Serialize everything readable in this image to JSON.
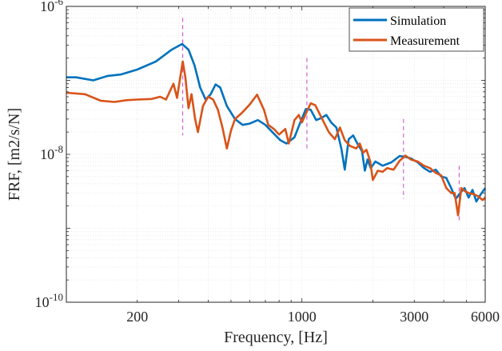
{
  "chart_data": {
    "type": "line",
    "title": "",
    "xlabel": "Frequency, [Hz]",
    "ylabel": "FRF, [m2/s/N]",
    "x_scale": "log",
    "y_scale": "log",
    "xlim": [
      100,
      6000
    ],
    "ylim": [
      1e-10,
      1e-06
    ],
    "grid": true,
    "legend_position": "top-right",
    "x_ticks": [
      {
        "value": 200,
        "label": "200"
      },
      {
        "value": 1000,
        "label": "1000"
      },
      {
        "value": 3000,
        "label": "3000"
      },
      {
        "value": 6000,
        "label": "6000"
      }
    ],
    "y_ticks": [
      {
        "value": 1e-10,
        "base": "10",
        "exp": "-10"
      },
      {
        "value": 1e-08,
        "base": "10",
        "exp": "-8"
      },
      {
        "value": 1e-06,
        "base": "10",
        "exp": "-6"
      }
    ],
    "series": [
      {
        "name": "Simulation",
        "color": "#0072BD",
        "points": [
          [
            100,
            1.1e-07
          ],
          [
            110,
            1.1e-07
          ],
          [
            130,
            1e-07
          ],
          [
            150,
            1.15e-07
          ],
          [
            170,
            1.2e-07
          ],
          [
            200,
            1.4e-07
          ],
          [
            240,
            1.8e-07
          ],
          [
            280,
            2.6e-07
          ],
          [
            310,
            3.1e-07
          ],
          [
            330,
            2.6e-07
          ],
          [
            350,
            1.6e-07
          ],
          [
            370,
            8e-08
          ],
          [
            390,
            5.5e-08
          ],
          [
            410,
            6.5e-08
          ],
          [
            430,
            8.8e-08
          ],
          [
            450,
            8e-08
          ],
          [
            480,
            4.5e-08
          ],
          [
            520,
            3e-08
          ],
          [
            560,
            2.5e-08
          ],
          [
            600,
            2.6e-08
          ],
          [
            650,
            2.9e-08
          ],
          [
            700,
            2.5e-08
          ],
          [
            760,
            1.9e-08
          ],
          [
            810,
            1.55e-08
          ],
          [
            860,
            1.4e-08
          ],
          [
            930,
            1.7e-08
          ],
          [
            980,
            2.6e-08
          ],
          [
            1040,
            4.1e-08
          ],
          [
            1090,
            4e-08
          ],
          [
            1150,
            2.9e-08
          ],
          [
            1210,
            3.1e-08
          ],
          [
            1270,
            3.4e-08
          ],
          [
            1330,
            2.7e-08
          ],
          [
            1400,
            2.3e-08
          ],
          [
            1470,
            1.2e-08
          ],
          [
            1520,
            6.2e-09
          ],
          [
            1580,
            1.6e-08
          ],
          [
            1650,
            1.8e-08
          ],
          [
            1720,
            1.4e-08
          ],
          [
            1800,
            1.1e-08
          ],
          [
            1850,
            6e-09
          ],
          [
            1900,
            8.5e-09
          ],
          [
            1960,
            6.5e-09
          ],
          [
            2050,
            8e-09
          ],
          [
            2200,
            7e-09
          ],
          [
            2400,
            7.8e-09
          ],
          [
            2600,
            9.5e-09
          ],
          [
            2750,
            9.2e-09
          ],
          [
            2900,
            8.8e-09
          ],
          [
            3100,
            7.8e-09
          ],
          [
            3300,
            6.5e-09
          ],
          [
            3500,
            5.8e-09
          ],
          [
            3700,
            6.2e-09
          ],
          [
            3900,
            5e-09
          ],
          [
            4100,
            4.8e-09
          ],
          [
            4300,
            3.5e-09
          ],
          [
            4500,
            2.5e-09
          ],
          [
            4700,
            3e-09
          ],
          [
            4900,
            3.5e-09
          ],
          [
            5100,
            2.6e-09
          ],
          [
            5300,
            3.3e-09
          ],
          [
            5500,
            2.3e-09
          ],
          [
            5750,
            2.9e-09
          ],
          [
            6000,
            3.5e-09
          ]
        ]
      },
      {
        "name": "Measurement",
        "color": "#D95319",
        "points": [
          [
            100,
            6.8e-08
          ],
          [
            120,
            6.5e-08
          ],
          [
            140,
            5.3e-08
          ],
          [
            160,
            5.1e-08
          ],
          [
            180,
            5.4e-08
          ],
          [
            200,
            5.5e-08
          ],
          [
            230,
            5.6e-08
          ],
          [
            250,
            6e-08
          ],
          [
            265,
            5.5e-08
          ],
          [
            285,
            9e-08
          ],
          [
            295,
            5.8e-08
          ],
          [
            303,
            1e-07
          ],
          [
            312,
            1.8e-07
          ],
          [
            320,
            1.1e-07
          ],
          [
            330,
            4.2e-08
          ],
          [
            340,
            6.5e-08
          ],
          [
            352,
            3e-08
          ],
          [
            362,
            2e-08
          ],
          [
            380,
            4.5e-08
          ],
          [
            400,
            6e-08
          ],
          [
            420,
            5.5e-08
          ],
          [
            440,
            4e-08
          ],
          [
            460,
            2.3e-08
          ],
          [
            480,
            1.2e-08
          ],
          [
            500,
            2.1e-08
          ],
          [
            520,
            3e-08
          ],
          [
            555,
            3.6e-08
          ],
          [
            600,
            4.7e-08
          ],
          [
            645,
            6.4e-08
          ],
          [
            690,
            4e-08
          ],
          [
            720,
            2.5e-08
          ],
          [
            760,
            2.2e-08
          ],
          [
            800,
            1.85e-08
          ],
          [
            850,
            2.2e-08
          ],
          [
            880,
            1.4e-08
          ],
          [
            930,
            2.9e-08
          ],
          [
            970,
            3.4e-08
          ],
          [
            1000,
            2.7e-08
          ],
          [
            1050,
            3.8e-08
          ],
          [
            1090,
            4.9e-08
          ],
          [
            1140,
            4.6e-08
          ],
          [
            1220,
            3e-08
          ],
          [
            1300,
            2e-08
          ],
          [
            1380,
            1.6e-08
          ],
          [
            1450,
            2.3e-08
          ],
          [
            1520,
            1.55e-08
          ],
          [
            1600,
            1.3e-08
          ],
          [
            1700,
            1.2e-08
          ],
          [
            1760,
            1.4e-08
          ],
          [
            1820,
            1.05e-08
          ],
          [
            1880,
            1.15e-08
          ],
          [
            1950,
            8e-09
          ],
          [
            2000,
            4.5e-09
          ],
          [
            2100,
            6e-09
          ],
          [
            2200,
            5.8e-09
          ],
          [
            2300,
            6.5e-09
          ],
          [
            2450,
            6.2e-09
          ],
          [
            2600,
            8.2e-09
          ],
          [
            2750,
            9.6e-09
          ],
          [
            2900,
            8.5e-09
          ],
          [
            3100,
            8e-09
          ],
          [
            3300,
            7e-09
          ],
          [
            3500,
            6.5e-09
          ],
          [
            3700,
            5.6e-09
          ],
          [
            3900,
            5.2e-09
          ],
          [
            4100,
            3.5e-09
          ],
          [
            4300,
            3e-09
          ],
          [
            4450,
            3e-09
          ],
          [
            4600,
            1.5e-09
          ],
          [
            4750,
            3.5e-09
          ],
          [
            4900,
            3.2e-09
          ],
          [
            5100,
            3e-09
          ],
          [
            5350,
            2.9e-09
          ],
          [
            5600,
            2.7e-09
          ],
          [
            5850,
            2.4e-09
          ],
          [
            6000,
            2.6e-09
          ]
        ]
      }
    ],
    "markers": [
      {
        "x": 312,
        "y_low": 1.8e-08,
        "y_high": 7e-07
      },
      {
        "x": 1050,
        "y_low": 1.1e-08,
        "y_high": 2e-07
      },
      {
        "x": 2700,
        "y_low": 2.5e-09,
        "y_high": 3e-08
      },
      {
        "x": 4650,
        "y_low": 1.2e-09,
        "y_high": 7e-09
      }
    ],
    "marker_color": "#CC44CC"
  }
}
